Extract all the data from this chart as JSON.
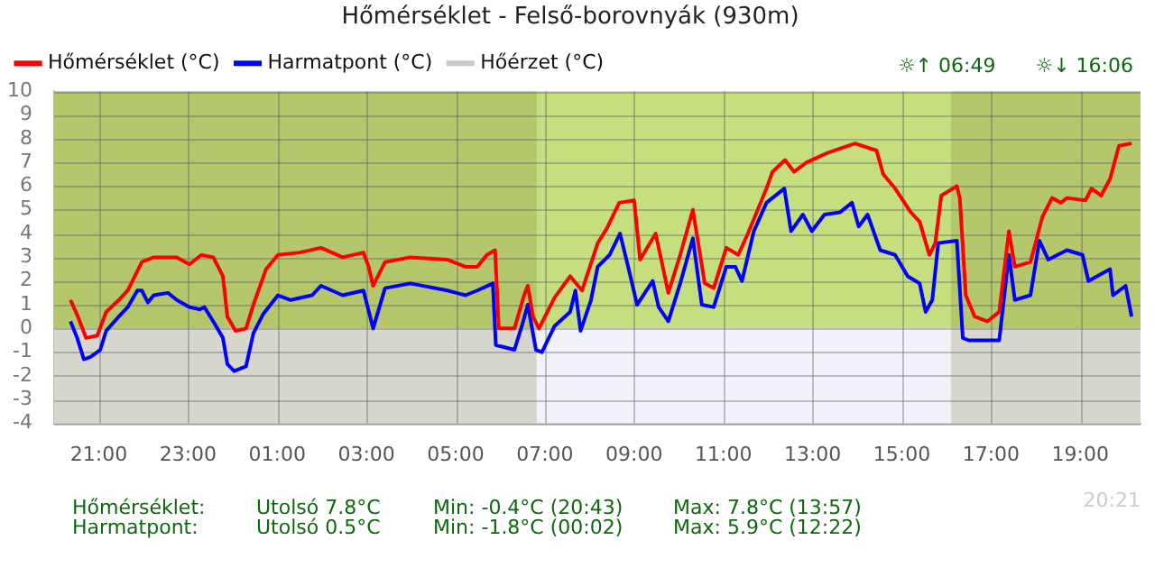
{
  "chart_data": {
    "type": "line",
    "title": "Hőmérséklet - Felső-borovnyák (930m)",
    "xlim": [
      "--01-01T20:00",
      "--01-02T20:21"
    ],
    "ylim": [
      -4,
      10
    ],
    "xticks": [
      {
        "value": "--01-01T21:00",
        "label": "21:00"
      },
      {
        "value": "--01-01T23:00",
        "label": "23:00"
      },
      {
        "value": "--01-02T01:00",
        "label": "01:00"
      },
      {
        "value": "--01-02T03:00",
        "label": "03:00"
      },
      {
        "value": "--01-02T05:00",
        "label": "05:00"
      },
      {
        "value": "--01-02T07:00",
        "label": "07:00"
      },
      {
        "value": "--01-02T09:00",
        "label": "09:00"
      },
      {
        "value": "--01-02T11:00",
        "label": "11:00"
      },
      {
        "value": "--01-02T13:00",
        "label": "13:00"
      },
      {
        "value": "--01-02T15:00",
        "label": "15:00"
      },
      {
        "value": "--01-02T17:00",
        "label": "17:00"
      },
      {
        "value": "--01-02T19:00",
        "label": "19:00"
      }
    ],
    "yticks": [
      -4,
      -3,
      -2,
      -1,
      0,
      1,
      2,
      3,
      4,
      5,
      6,
      7,
      8,
      9,
      10
    ],
    "grid": true,
    "legend": "top",
    "marker": "none",
    "line_style": "solid",
    "series": [
      {
        "name": "Hőmérséklet (°C)",
        "color": "#ff0000",
        "x": [
          "--01-01T20:22",
          "--01-01T20:32",
          "--01-01T20:43",
          "--01-01T20:58",
          "--01-01T21:10",
          "--01-01T21:27",
          "--01-01T21:39",
          "--01-01T21:58",
          "--01-01T22:14",
          "--01-01T22:45",
          "--01-01T23:02",
          "--01-01T23:18",
          "--01-01T23:34",
          "--01-01T23:47",
          "--01-01T23:53",
          "--01-02T00:04",
          "--01-02T00:18",
          "--01-02T00:28",
          "--01-02T00:45",
          "--01-02T01:01",
          "--01-02T01:30",
          "--01-02T01:59",
          "--01-02T02:28",
          "--01-02T02:56",
          "--01-02T03:03",
          "--01-02T03:09",
          "--01-02T03:25",
          "--01-02T03:59",
          "--01-02T04:49",
          "--01-02T05:13",
          "--01-02T05:29",
          "--01-02T05:42",
          "--01-02T05:53",
          "--01-02T05:58",
          "--01-02T06:19",
          "--01-02T06:32",
          "--01-02T06:37",
          "--01-02T06:44",
          "--01-02T06:52",
          "--01-02T07:13",
          "--01-02T07:34",
          "--01-02T07:50",
          "--01-02T08:11",
          "--01-02T08:23",
          "--01-02T08:40",
          "--01-02T09:00",
          "--01-02T09:08",
          "--01-02T09:29",
          "--01-02T09:46",
          "--01-02T10:02",
          "--01-02T10:19",
          "--01-02T10:35",
          "--01-02T10:47",
          "--01-02T11:04",
          "--01-02T11:20",
          "--01-02T11:33",
          "--01-02T11:58",
          "--01-02T12:06",
          "--01-02T12:23",
          "--01-02T12:35",
          "--01-02T12:52",
          "--01-02T13:20",
          "--01-02T13:57",
          "--01-02T14:26",
          "--01-02T14:35",
          "--01-02T14:51",
          "--01-02T15:12",
          "--01-02T15:24",
          "--01-02T15:37",
          "--01-02T15:45",
          "--01-02T15:53",
          "--01-02T16:14",
          "--01-02T16:18",
          "--01-02T16:26",
          "--01-02T16:38",
          "--01-02T16:55",
          "--01-02T17:11",
          "--01-02T17:24",
          "--01-02T17:32",
          "--01-02T17:53",
          "--01-02T18:09",
          "--01-02T18:22",
          "--01-02T18:34",
          "--01-02T18:42",
          "--01-02T19:07",
          "--01-02T19:15",
          "--01-02T19:28",
          "--01-02T19:40",
          "--01-02T19:52",
          "--01-02T20:09"
        ],
        "values": [
          1.2,
          0.5,
          -0.4,
          -0.3,
          0.7,
          1.2,
          1.6,
          2.8,
          3.0,
          3.0,
          2.7,
          3.1,
          3.0,
          2.2,
          0.5,
          -0.1,
          0.0,
          1.0,
          2.5,
          3.1,
          3.2,
          3.4,
          3.0,
          3.2,
          2.6,
          1.8,
          2.8,
          3.0,
          2.9,
          2.6,
          2.6,
          3.1,
          3.3,
          0.0,
          0.0,
          1.4,
          1.8,
          0.5,
          0.0,
          1.3,
          2.2,
          1.6,
          3.6,
          4.2,
          5.3,
          5.4,
          2.9,
          4.0,
          1.5,
          3.1,
          5.0,
          1.9,
          1.7,
          3.4,
          3.1,
          4.0,
          5.9,
          6.6,
          7.1,
          6.6,
          7.0,
          7.4,
          7.8,
          7.5,
          6.5,
          5.9,
          4.9,
          4.5,
          3.1,
          3.6,
          5.6,
          6.0,
          5.5,
          1.4,
          0.5,
          0.3,
          0.7,
          4.1,
          2.6,
          2.8,
          4.7,
          5.5,
          5.3,
          5.5,
          5.4,
          5.9,
          5.6,
          6.3,
          7.7,
          7.8
        ]
      },
      {
        "name": "Harmatpont (°C)",
        "color": "#0000ff",
        "x": [
          "--01-01T20:22",
          "--01-01T20:31",
          "--01-01T20:40",
          "--01-01T20:49",
          "--01-01T21:02",
          "--01-01T21:10",
          "--01-01T21:27",
          "--01-01T21:39",
          "--01-01T21:52",
          "--01-01T21:58",
          "--01-01T22:06",
          "--01-01T22:14",
          "--01-01T22:33",
          "--01-01T22:45",
          "--01-01T23:02",
          "--01-01T23:16",
          "--01-01T23:22",
          "--01-01T23:34",
          "--01-01T23:47",
          "--01-01T23:53",
          "--01-02T00:02",
          "--01-02T00:18",
          "--01-02T00:28",
          "--01-02T00:41",
          "--01-02T01:01",
          "--01-02T01:18",
          "--01-02T01:47",
          "--01-02T01:59",
          "--01-02T02:28",
          "--01-02T02:56",
          "--01-02T03:05",
          "--01-02T03:09",
          "--01-02T03:25",
          "--01-02T03:59",
          "--01-02T04:49",
          "--01-02T05:13",
          "--01-02T05:29",
          "--01-02T05:50",
          "--01-02T05:54",
          "--01-02T06:19",
          "--01-02T06:29",
          "--01-02T06:37",
          "--01-02T06:48",
          "--01-02T06:56",
          "--01-02T07:13",
          "--01-02T07:34",
          "--01-02T07:41",
          "--01-02T07:48",
          "--01-02T08:02",
          "--01-02T08:11",
          "--01-02T08:27",
          "--01-02T08:41",
          "--01-02T08:52",
          "--01-02T09:04",
          "--01-02T09:25",
          "--01-02T09:33",
          "--01-02T09:46",
          "--01-02T10:02",
          "--01-02T10:19",
          "--01-02T10:31",
          "--01-02T10:47",
          "--01-02T11:04",
          "--01-02T11:16",
          "--01-02T11:25",
          "--01-02T11:41",
          "--01-02T11:58",
          "--01-02T12:22",
          "--01-02T12:31",
          "--01-02T12:47",
          "--01-02T12:59",
          "--01-02T13:16",
          "--01-02T13:37",
          "--01-02T13:53",
          "--01-02T14:02",
          "--01-02T14:14",
          "--01-02T14:31",
          "--01-02T14:51",
          "--01-02T15:08",
          "--01-02T15:24",
          "--01-02T15:32",
          "--01-02T15:41",
          "--01-02T15:49",
          "--01-02T16:14",
          "--01-02T16:22",
          "--01-02T16:30",
          "--01-02T17:11",
          "--01-02T17:24",
          "--01-02T17:32",
          "--01-02T17:53",
          "--01-02T18:05",
          "--01-02T18:17",
          "--01-02T18:42",
          "--01-02T19:03",
          "--01-02T19:11",
          "--01-02T19:40",
          "--01-02T19:44",
          "--01-02T20:01",
          "--01-02T20:09"
        ],
        "values": [
          0.3,
          -0.4,
          -1.3,
          -1.2,
          -0.9,
          -0.1,
          0.5,
          0.9,
          1.6,
          1.6,
          1.1,
          1.4,
          1.5,
          1.2,
          0.9,
          0.8,
          0.9,
          0.3,
          -0.4,
          -1.5,
          -1.8,
          -1.6,
          -0.2,
          0.6,
          1.4,
          1.2,
          1.4,
          1.8,
          1.4,
          1.6,
          0.5,
          0.0,
          1.7,
          1.9,
          1.6,
          1.4,
          1.6,
          1.9,
          -0.7,
          -0.9,
          0.1,
          1.0,
          -0.9,
          -1.0,
          0.1,
          0.7,
          1.6,
          -0.1,
          1.2,
          2.6,
          3.1,
          4.0,
          2.6,
          1.0,
          2.0,
          0.9,
          0.3,
          1.9,
          3.8,
          1.0,
          0.9,
          2.6,
          2.6,
          2.0,
          4.1,
          5.3,
          5.9,
          4.1,
          4.8,
          4.1,
          4.8,
          4.9,
          5.3,
          4.3,
          4.8,
          3.3,
          3.1,
          2.2,
          1.9,
          0.7,
          1.2,
          3.6,
          3.7,
          -0.4,
          -0.5,
          -0.5,
          3.1,
          1.2,
          1.4,
          3.7,
          2.9,
          3.3,
          3.1,
          2.0,
          2.5,
          1.4,
          1.8,
          0.5
        ]
      },
      {
        "name": "Hőérzet (°C)",
        "color": "#c8c8c8"
      }
    ],
    "bands": [
      {
        "axis": "y",
        "from": 0,
        "to": 10,
        "color": "#c5de7e"
      },
      {
        "axis": "y",
        "from": -4,
        "to": 0,
        "color": "#f2f2fa"
      },
      {
        "axis": "x",
        "from": "--01-01T20:00",
        "to": "--01-02T06:49",
        "color": "#757020"
      },
      {
        "axis": "x",
        "from": "--01-02T16:06",
        "to": "--01-02T20:21",
        "color": "#757020"
      }
    ],
    "annotations": [
      "☼↑ 06:49",
      "☼↓ 16:06",
      "Hőmérséklet:",
      "Utolsó 7.8°C",
      "Min: -0.4°C (20:43)",
      "Max: 7.8°C (13:57)",
      "Harmatpont:",
      "Utolsó 0.5°C",
      "Min: -1.8°C (00:02)",
      "Max: 5.9°C (12:22)",
      "20:21"
    ]
  }
}
